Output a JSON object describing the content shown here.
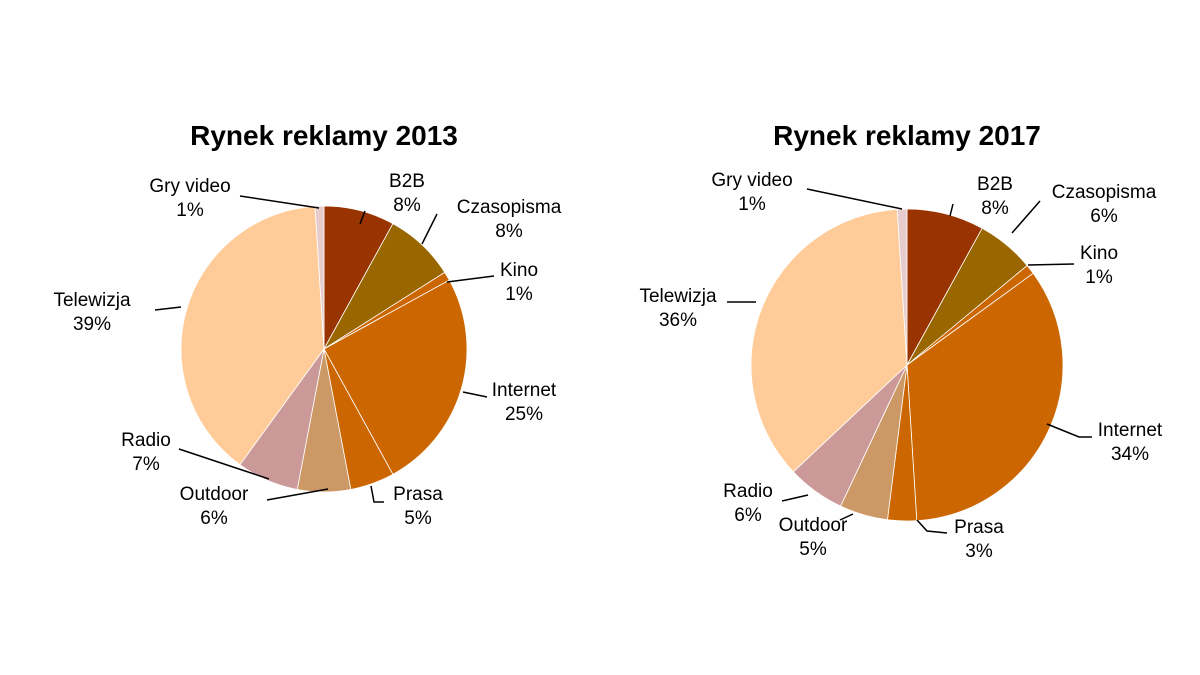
{
  "chart_data": [
    {
      "type": "pie",
      "title": "Rynek reklamy 2013",
      "categories": [
        "B2B",
        "Czasopisma",
        "Kino",
        "Internet",
        "Prasa",
        "Outdoor",
        "Radio",
        "Telewizja",
        "Gry video"
      ],
      "values": [
        8,
        8,
        1,
        25,
        5,
        6,
        7,
        39,
        1
      ],
      "labels": [
        "8%",
        "8%",
        "1%",
        "25%",
        "5%",
        "6%",
        "7%",
        "39%",
        "1%"
      ],
      "colors": [
        "#993300",
        "#996600",
        "#cc6600",
        "#cc6600",
        "#cc6600",
        "#cc9966",
        "#cc9999",
        "#ffcc99",
        "#e6cccc"
      ],
      "start_angle_deg": 0,
      "direction": "clockwise",
      "legend": "none"
    },
    {
      "type": "pie",
      "title": "Rynek reklamy 2017",
      "categories": [
        "B2B",
        "Czasopisma",
        "Kino",
        "Internet",
        "Prasa",
        "Outdoor",
        "Radio",
        "Telewizja",
        "Gry video"
      ],
      "values": [
        8,
        6,
        1,
        34,
        3,
        5,
        6,
        36,
        1
      ],
      "labels": [
        "8%",
        "6%",
        "1%",
        "34%",
        "3%",
        "5%",
        "6%",
        "36%",
        "1%"
      ],
      "colors": [
        "#993300",
        "#996600",
        "#cc6600",
        "#cc6600",
        "#cc6600",
        "#cc9966",
        "#cc9999",
        "#ffcc99",
        "#e6cccc"
      ],
      "start_angle_deg": 0,
      "direction": "clockwise",
      "legend": "none"
    }
  ]
}
